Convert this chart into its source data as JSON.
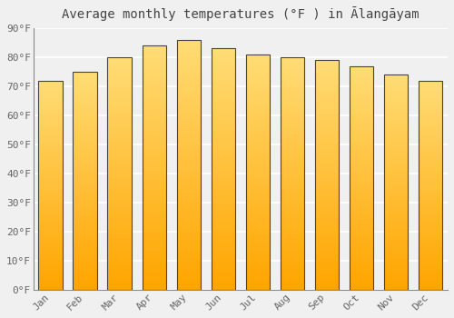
{
  "title": "Average monthly temperatures (°F ) in Ālangāyam",
  "months": [
    "Jan",
    "Feb",
    "Mar",
    "Apr",
    "May",
    "Jun",
    "Jul",
    "Aug",
    "Sep",
    "Oct",
    "Nov",
    "Dec"
  ],
  "values": [
    72,
    75,
    80,
    84,
    86,
    83,
    81,
    80,
    79,
    77,
    74,
    72
  ],
  "ylim": [
    0,
    90
  ],
  "yticks": [
    0,
    10,
    20,
    30,
    40,
    50,
    60,
    70,
    80,
    90
  ],
  "ytick_labels": [
    "0°F",
    "10°F",
    "20°F",
    "30°F",
    "40°F",
    "50°F",
    "60°F",
    "70°F",
    "80°F",
    "90°F"
  ],
  "background_color": "#f0f0f0",
  "grid_color": "#ffffff",
  "bar_color_bottom": "#FFA500",
  "bar_color_top": "#FFD966",
  "bar_edge_color": "#444444",
  "title_fontsize": 10,
  "tick_fontsize": 8,
  "tick_color": "#666666",
  "bar_width": 0.7
}
